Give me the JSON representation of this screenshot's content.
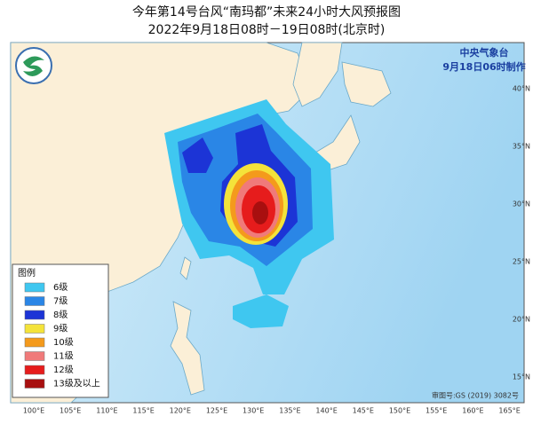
{
  "title": [
    "今年第14号台风“南玛都”未来24小时大风预报图",
    "2022年9月18日08时－19日08时(北京时)"
  ],
  "agency": "中央气象台",
  "issued": "9月18日06时制作",
  "legend": {
    "title": "图例",
    "items": [
      {
        "label": "6级",
        "color": "#3fc7f0"
      },
      {
        "label": "7级",
        "color": "#2a86e6"
      },
      {
        "label": "8级",
        "color": "#1c34d6"
      },
      {
        "label": "9级",
        "color": "#f4e33a"
      },
      {
        "label": "10级",
        "color": "#f49a1c"
      },
      {
        "label": "11级",
        "color": "#f07a7a"
      },
      {
        "label": "12级",
        "color": "#e61c1c"
      },
      {
        "label": "13级及以上",
        "color": "#a80f0f"
      }
    ]
  },
  "longitude_labels": [
    "100°E",
    "105°E",
    "110°E",
    "115°E",
    "120°E",
    "125°E",
    "130°E",
    "135°E",
    "140°E",
    "145°E",
    "150°E",
    "155°E",
    "160°E",
    "165°E"
  ],
  "latitude_labels": [
    "40°N",
    "35°N",
    "30°N",
    "25°N",
    "20°N",
    "15°N"
  ],
  "map_approval": "审图号:GS (2019) 3082号"
}
